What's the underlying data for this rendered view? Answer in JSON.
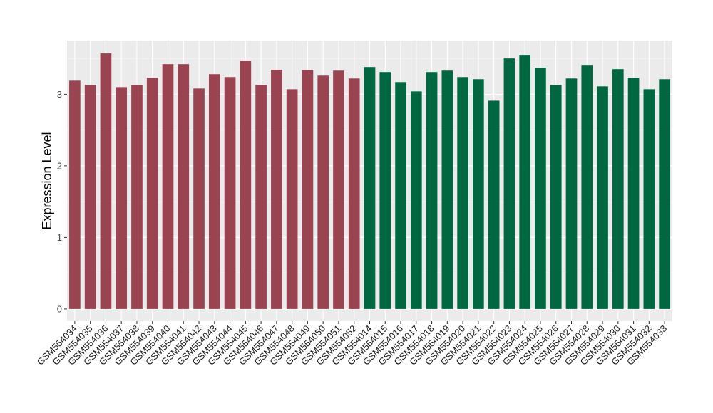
{
  "chart_data": {
    "type": "bar",
    "title": "",
    "xlabel": "",
    "ylabel": "Expression Level",
    "ylim": [
      -0.17,
      3.75
    ],
    "yticks": [
      0,
      1,
      2,
      3
    ],
    "grid": true,
    "legend": "none",
    "categories": [
      "GSM554034",
      "GSM554035",
      "GSM554036",
      "GSM554037",
      "GSM554038",
      "GSM554039",
      "GSM554040",
      "GSM554041",
      "GSM554042",
      "GSM554043",
      "GSM554044",
      "GSM554045",
      "GSM554046",
      "GSM554047",
      "GSM554048",
      "GSM554049",
      "GSM554050",
      "GSM554051",
      "GSM554052",
      "GSM554014",
      "GSM554015",
      "GSM554016",
      "GSM554017",
      "GSM554018",
      "GSM554019",
      "GSM554020",
      "GSM554021",
      "GSM554022",
      "GSM554023",
      "GSM554024",
      "GSM554025",
      "GSM554026",
      "GSM554027",
      "GSM554028",
      "GSM554029",
      "GSM554030",
      "GSM554031",
      "GSM554032",
      "GSM554033"
    ],
    "values": [
      3.19,
      3.13,
      3.57,
      3.1,
      3.13,
      3.23,
      3.42,
      3.42,
      3.08,
      3.28,
      3.24,
      3.47,
      3.13,
      3.34,
      3.07,
      3.34,
      3.26,
      3.33,
      3.22,
      3.38,
      3.31,
      3.17,
      3.04,
      3.31,
      3.33,
      3.24,
      3.21,
      2.91,
      3.5,
      3.55,
      3.37,
      3.13,
      3.22,
      3.41,
      3.11,
      3.35,
      3.23,
      3.07,
      3.21
    ],
    "bar_colors": [
      "#9a4452",
      "#9a4452",
      "#9a4452",
      "#9a4452",
      "#9a4452",
      "#9a4452",
      "#9a4452",
      "#9a4452",
      "#9a4452",
      "#9a4452",
      "#9a4452",
      "#9a4452",
      "#9a4452",
      "#9a4452",
      "#9a4452",
      "#9a4452",
      "#9a4452",
      "#9a4452",
      "#9a4452",
      "#006840",
      "#006840",
      "#006840",
      "#006840",
      "#006840",
      "#006840",
      "#006840",
      "#006840",
      "#006840",
      "#006840",
      "#006840",
      "#006840",
      "#006840",
      "#006840",
      "#006840",
      "#006840",
      "#006840",
      "#006840",
      "#006840",
      "#006840"
    ]
  },
  "colors": {
    "panel_background": "#ebebeb",
    "gridline": "#ffffff",
    "group_a": "#9a4452",
    "group_b": "#006840"
  }
}
